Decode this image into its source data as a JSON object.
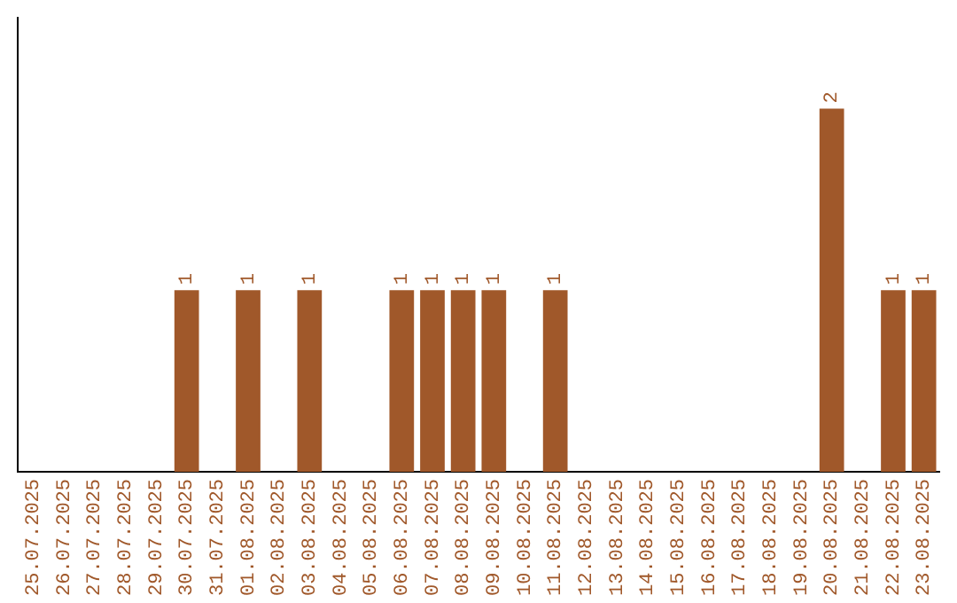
{
  "chart_data": {
    "type": "bar",
    "categories": [
      "25.07.2025",
      "26.07.2025",
      "27.07.2025",
      "28.07.2025",
      "29.07.2025",
      "30.07.2025",
      "31.07.2025",
      "01.08.2025",
      "02.08.2025",
      "03.08.2025",
      "04.08.2025",
      "05.08.2025",
      "06.08.2025",
      "07.08.2025",
      "08.08.2025",
      "09.08.2025",
      "10.08.2025",
      "11.08.2025",
      "12.08.2025",
      "13.08.2025",
      "14.08.2025",
      "15.08.2025",
      "16.08.2025",
      "17.08.2025",
      "18.08.2025",
      "19.08.2025",
      "20.08.2025",
      "21.08.2025",
      "22.08.2025",
      "23.08.2025"
    ],
    "values": [
      0,
      0,
      0,
      0,
      0,
      1,
      0,
      1,
      0,
      1,
      0,
      0,
      1,
      1,
      1,
      1,
      0,
      1,
      0,
      0,
      0,
      0,
      0,
      0,
      0,
      0,
      2,
      0,
      1,
      1
    ],
    "color": "#a0582a",
    "value_labels": [
      null,
      null,
      null,
      null,
      null,
      "1",
      null,
      "1",
      null,
      "1",
      null,
      null,
      "1",
      "1",
      "1",
      "1",
      null,
      "1",
      null,
      null,
      null,
      null,
      null,
      null,
      null,
      null,
      "2",
      null,
      "1",
      "1"
    ],
    "grid": false,
    "tick_labels": "x",
    "legend": false
  }
}
